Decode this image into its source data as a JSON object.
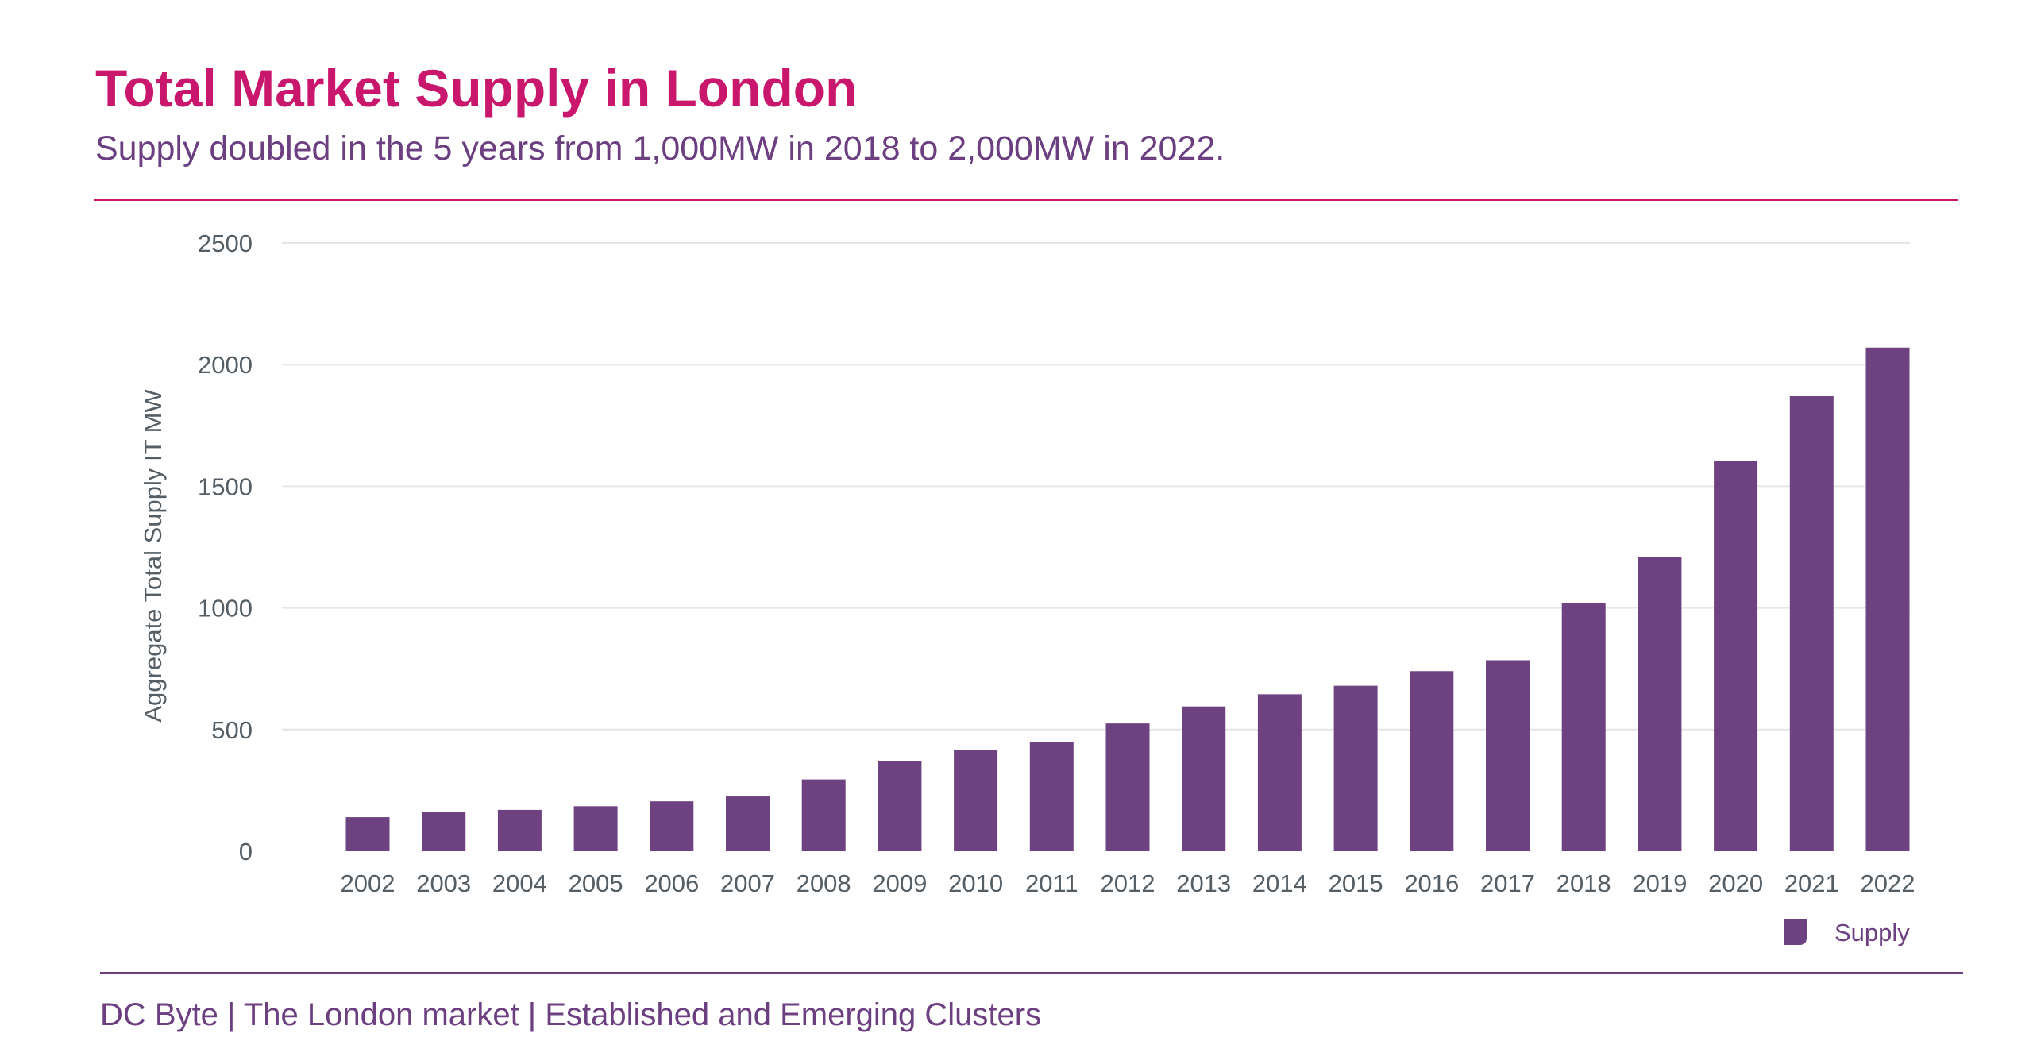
{
  "header": {
    "title": "Total Market Supply in London",
    "subtitle": "Supply doubled in the 5 years from 1,000MW in 2018 to 2,000MW in 2022."
  },
  "footer": {
    "text": "DC Byte | The London market | Established and Emerging Clusters"
  },
  "colors": {
    "title": "#c8176c",
    "accent": "#6c3f80",
    "bar": "#6e4180",
    "grid": "#e6e6e6",
    "tick_text": "#555e64"
  },
  "chart_data": {
    "type": "bar",
    "title": "",
    "xlabel": "",
    "ylabel": "Aggregate Total Supply IT MW",
    "categories": [
      "2002",
      "2003",
      "2004",
      "2005",
      "2006",
      "2007",
      "2008",
      "2009",
      "2010",
      "2011",
      "2012",
      "2013",
      "2014",
      "2015",
      "2016",
      "2017",
      "2018",
      "2019",
      "2020",
      "2021",
      "2022"
    ],
    "series": [
      {
        "name": "Supply",
        "values": [
          140,
          160,
          170,
          185,
          205,
          225,
          295,
          370,
          415,
          450,
          525,
          595,
          645,
          680,
          740,
          785,
          1020,
          1210,
          1605,
          1870,
          2070
        ]
      }
    ],
    "ylim": [
      0,
      2500
    ],
    "yticks": [
      0,
      500,
      1000,
      1500,
      2000,
      2500
    ],
    "grid": true,
    "legend": "bottom-right"
  }
}
